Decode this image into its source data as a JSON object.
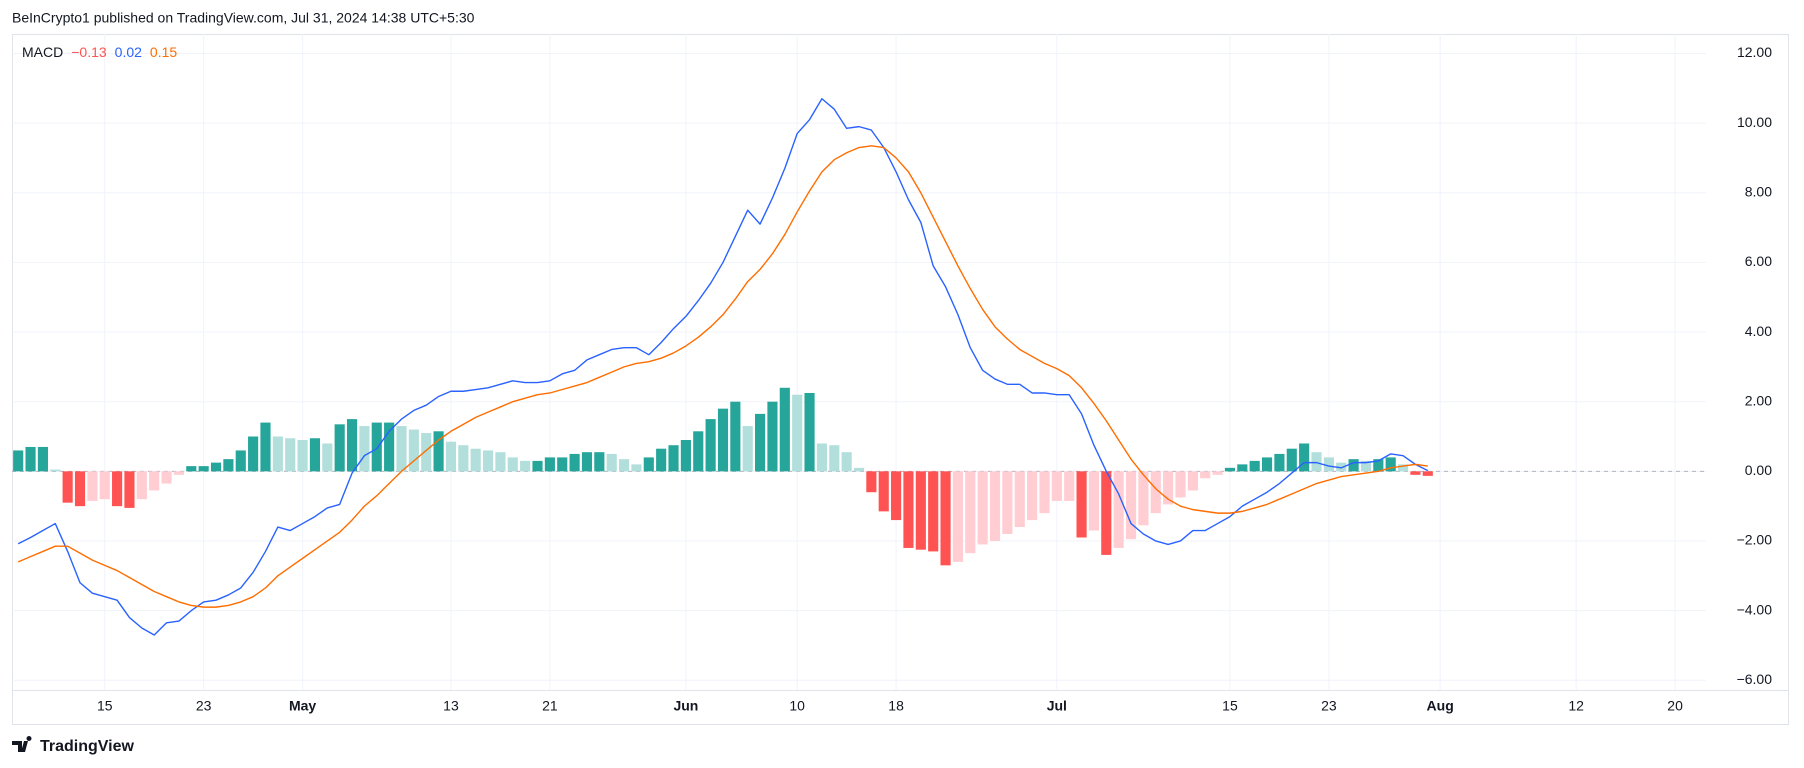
{
  "header": {
    "text": "BeInCrypto1 published on TradingView.com, Jul 31, 2024 14:38 UTC+5:30"
  },
  "footer": {
    "brand": "TradingView"
  },
  "chart_data": {
    "type": "macd",
    "legend": {
      "title": "MACD",
      "labels": [
        "−0.13",
        "0.02",
        "0.15"
      ]
    },
    "categories": [
      null,
      null,
      null,
      null,
      null,
      null,
      null,
      "15",
      null,
      null,
      null,
      null,
      null,
      null,
      null,
      "23",
      null,
      null,
      null,
      null,
      null,
      null,
      null,
      "May",
      null,
      null,
      null,
      null,
      null,
      null,
      null,
      null,
      null,
      null,
      null,
      "13",
      null,
      null,
      null,
      null,
      null,
      null,
      null,
      "21",
      null,
      null,
      null,
      null,
      null,
      null,
      null,
      null,
      null,
      null,
      "Jun",
      null,
      null,
      null,
      null,
      null,
      null,
      null,
      null,
      "10",
      null,
      null,
      null,
      null,
      null,
      null,
      null,
      "18",
      null,
      null,
      null,
      null,
      null,
      null,
      null,
      null,
      null,
      null,
      null,
      null,
      "Jul",
      null,
      null,
      null,
      null,
      null,
      null,
      null,
      null,
      null,
      null,
      null,
      null,
      null,
      "15",
      null,
      null,
      null,
      null,
      null,
      null,
      null,
      "23",
      null,
      null,
      null,
      null,
      null,
      null,
      null,
      null,
      "Aug",
      null,
      null,
      null,
      null,
      null,
      null,
      null,
      null,
      null,
      null,
      "12",
      null,
      null,
      null,
      null,
      null,
      null,
      null,
      "20",
      null,
      null
    ],
    "series": [
      {
        "type": "histogram",
        "colors": {
          "grow_above": "#26a69a",
          "fall_above": "#b2dfdb",
          "grow_below": "#ffcdd2",
          "fall_below": "#ff5252"
        },
        "values": [
          0.6,
          0.7,
          0.7,
          0.05,
          -0.9,
          -1.0,
          -0.85,
          -0.8,
          -1.0,
          -1.05,
          -0.8,
          -0.55,
          -0.35,
          -0.1,
          0.15,
          0.15,
          0.25,
          0.35,
          0.6,
          1.0,
          1.4,
          1.0,
          0.95,
          0.9,
          0.95,
          0.8,
          1.35,
          1.5,
          1.3,
          1.4,
          1.4,
          1.3,
          1.2,
          1.1,
          1.15,
          0.85,
          0.75,
          0.65,
          0.6,
          0.55,
          0.4,
          0.3,
          0.3,
          0.4,
          0.4,
          0.5,
          0.55,
          0.55,
          0.5,
          0.35,
          0.2,
          0.4,
          0.65,
          0.75,
          0.9,
          1.15,
          1.5,
          1.8,
          2.0,
          1.3,
          1.65,
          2.0,
          2.4,
          2.2,
          2.25,
          0.8,
          0.75,
          0.55,
          0.1,
          -0.6,
          -1.15,
          -1.4,
          -2.2,
          -2.25,
          -2.3,
          -2.7,
          -2.6,
          -2.35,
          -2.1,
          -2.0,
          -1.8,
          -1.6,
          -1.4,
          -1.2,
          -0.85,
          -0.85,
          -1.9,
          -1.7,
          -2.4,
          -2.2,
          -1.95,
          -1.55,
          -1.2,
          -0.95,
          -0.75,
          -0.55,
          -0.2,
          -0.1,
          0.1,
          0.2,
          0.3,
          0.4,
          0.5,
          0.65,
          0.8,
          0.55,
          0.4,
          0.25,
          0.35,
          0.3,
          0.35,
          0.4,
          0.2,
          -0.1,
          -0.13,
          null,
          null,
          null,
          null,
          null,
          null,
          null,
          null,
          null,
          null,
          null,
          null,
          null,
          null,
          null,
          null,
          null,
          null,
          null,
          null,
          null,
          null
        ]
      },
      {
        "type": "line",
        "color": "#2962ff",
        "values": [
          -2.08,
          -1.9,
          -1.7,
          -1.5,
          -2.3,
          -3.2,
          -3.5,
          -3.6,
          -3.7,
          -4.2,
          -4.5,
          -4.7,
          -4.35,
          -4.3,
          -4.0,
          -3.75,
          -3.7,
          -3.55,
          -3.35,
          -2.9,
          -2.3,
          -1.6,
          -1.7,
          -1.5,
          -1.3,
          -1.05,
          -0.95,
          -0.05,
          0.45,
          0.65,
          1.15,
          1.5,
          1.75,
          1.9,
          2.15,
          2.3,
          2.3,
          2.35,
          2.4,
          2.5,
          2.6,
          2.55,
          2.55,
          2.6,
          2.8,
          2.9,
          3.2,
          3.35,
          3.5,
          3.55,
          3.55,
          3.35,
          3.7,
          4.1,
          4.45,
          4.9,
          5.4,
          6.0,
          6.75,
          7.5,
          7.1,
          7.85,
          8.7,
          9.7,
          10.1,
          10.7,
          10.4,
          9.85,
          9.9,
          9.8,
          9.3,
          8.6,
          7.8,
          7.15,
          5.9,
          5.3,
          4.5,
          3.55,
          2.9,
          2.65,
          2.5,
          2.5,
          2.25,
          2.25,
          2.2,
          2.2,
          1.65,
          0.75,
          0,
          -0.65,
          -1.5,
          -1.8,
          -2.0,
          -2.1,
          -2.0,
          -1.7,
          -1.7,
          -1.5,
          -1.3,
          -1.0,
          -0.8,
          -0.6,
          -0.35,
          -0.05,
          0.25,
          0.25,
          0.15,
          0.1,
          0.25,
          0.25,
          0.3,
          0.5,
          0.45,
          0.2,
          0.02,
          null,
          null,
          null,
          null,
          null,
          null,
          null,
          null,
          null,
          null,
          null,
          null,
          null,
          null,
          null,
          null,
          null,
          null,
          null,
          null,
          null,
          null
        ]
      },
      {
        "type": "line",
        "color": "#ff6d00",
        "values": [
          -2.6,
          -2.45,
          -2.3,
          -2.15,
          -2.15,
          -2.35,
          -2.55,
          -2.7,
          -2.85,
          -3.05,
          -3.25,
          -3.45,
          -3.6,
          -3.75,
          -3.85,
          -3.9,
          -3.9,
          -3.85,
          -3.75,
          -3.6,
          -3.35,
          -3.0,
          -2.75,
          -2.5,
          -2.25,
          -2.0,
          -1.75,
          -1.4,
          -1.0,
          -0.7,
          -0.35,
          0.0,
          0.3,
          0.6,
          0.9,
          1.15,
          1.35,
          1.55,
          1.7,
          1.85,
          2.0,
          2.1,
          2.2,
          2.25,
          2.35,
          2.45,
          2.55,
          2.7,
          2.85,
          3.0,
          3.1,
          3.15,
          3.25,
          3.4,
          3.6,
          3.85,
          4.15,
          4.5,
          4.95,
          5.45,
          5.8,
          6.25,
          6.8,
          7.45,
          8.05,
          8.6,
          8.95,
          9.15,
          9.3,
          9.35,
          9.3,
          9.0,
          8.6,
          8.0,
          7.3,
          6.6,
          5.9,
          5.25,
          4.65,
          4.15,
          3.8,
          3.5,
          3.3,
          3.1,
          2.95,
          2.75,
          2.4,
          1.95,
          1.45,
          0.9,
          0.35,
          -0.1,
          -0.5,
          -0.8,
          -1.0,
          -1.1,
          -1.15,
          -1.2,
          -1.2,
          -1.15,
          -1.05,
          -0.95,
          -0.8,
          -0.65,
          -0.5,
          -0.35,
          -0.25,
          -0.15,
          -0.1,
          -0.05,
          0.0,
          0.1,
          0.15,
          0.2,
          0.15,
          null,
          null,
          null,
          null,
          null,
          null,
          null,
          null,
          null,
          null,
          null,
          null,
          null,
          null,
          null,
          null,
          null,
          null,
          null,
          null,
          null,
          null
        ]
      }
    ],
    "ylim": [
      -6.28,
      12.56
    ],
    "yticks": [
      {
        "value": -6,
        "label": "−6.00"
      },
      {
        "value": -4,
        "label": "−4.00"
      },
      {
        "value": -2,
        "label": "−2.00"
      },
      {
        "value": 0,
        "label": "0.00"
      },
      {
        "value": 2,
        "label": "2.00"
      },
      {
        "value": 4,
        "label": "4.00"
      },
      {
        "value": 6,
        "label": "6.00"
      },
      {
        "value": 8,
        "label": "8.00"
      },
      {
        "value": 10,
        "label": "10.00"
      },
      {
        "value": 12,
        "label": "12.00"
      }
    ],
    "grid": true
  }
}
